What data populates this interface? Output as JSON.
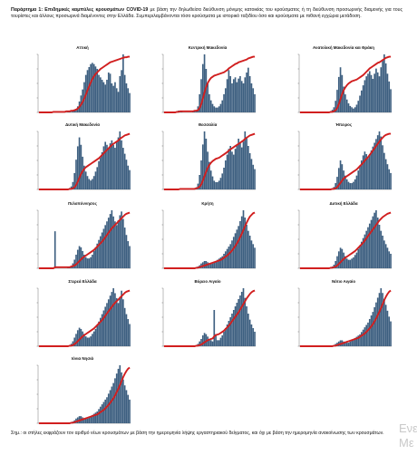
{
  "header": {
    "label": "Παράρτημα 1:",
    "title": "Επιδημικές καμπύλες κρουσμάτων COVID-19",
    "text": "με βάση την δηλωθείσα διεύθυνση μόνιμης κατοικίας του κρούσματος ή τη διεύθυνση προσωρινής διαμονής για τους τουρίστες και άλλους προσωρινά διαμένοντες στην Ελλάδα. Συμπεριλαμβάνονται τόσο κρούσματα με ιστορικό ταξιδίου όσο και κρούσματα με πιθανή εγχώρια μετάδοση."
  },
  "colors": {
    "bars": "#3d5f80",
    "line": "#d11f1f",
    "axis": "#555555"
  },
  "chart_data": [
    {
      "type": "bar",
      "title": "Αττική",
      "values": [
        0,
        0,
        0,
        0,
        0,
        0,
        0,
        0,
        1,
        1,
        1,
        0,
        0,
        0,
        0,
        0,
        0,
        0,
        1,
        1,
        1,
        2,
        3,
        6,
        10,
        18,
        28,
        38,
        50,
        62,
        70,
        75,
        80,
        82,
        80,
        76,
        72,
        62,
        58,
        54,
        50,
        46,
        54,
        66,
        64,
        48,
        44,
        50,
        40,
        34,
        60,
        70,
        96,
        62,
        48,
        40,
        32
      ],
      "line": [
        0,
        0,
        0,
        0,
        0,
        0,
        0,
        0,
        0,
        1,
        1,
        1,
        1,
        1,
        1,
        1,
        1,
        2,
        2,
        2,
        3,
        3,
        4,
        5,
        7,
        10,
        14,
        19,
        25,
        32,
        40,
        47,
        54,
        60,
        65,
        69,
        72,
        75,
        78,
        80,
        82,
        84,
        86,
        88,
        90,
        91,
        92,
        93,
        94,
        95,
        96,
        97,
        98,
        99,
        99,
        100,
        100
      ]
    },
    {
      "type": "bar",
      "title": "Κεντρική Μακεδονία",
      "values": [
        0,
        0,
        0,
        0,
        0,
        0,
        0,
        0,
        2,
        3,
        2,
        1,
        0,
        0,
        0,
        0,
        0,
        0,
        1,
        2,
        4,
        10,
        30,
        55,
        80,
        96,
        72,
        48,
        30,
        20,
        14,
        10,
        8,
        8,
        10,
        14,
        20,
        30,
        40,
        55,
        70,
        60,
        48,
        55,
        58,
        50,
        56,
        60,
        52,
        48,
        58,
        66,
        74,
        60,
        48,
        40,
        30
      ],
      "line": [
        0,
        0,
        0,
        0,
        0,
        0,
        0,
        0,
        1,
        1,
        2,
        2,
        2,
        2,
        2,
        2,
        2,
        2,
        2,
        3,
        3,
        4,
        8,
        15,
        25,
        36,
        46,
        53,
        58,
        62,
        64,
        66,
        67,
        68,
        69,
        70,
        71,
        72,
        74,
        76,
        79,
        81,
        83,
        85,
        87,
        88,
        90,
        91,
        92,
        93,
        94,
        95,
        97,
        98,
        99,
        100,
        100
      ]
    },
    {
      "type": "bar",
      "title": "Ανατολική Μακεδονία και Θράκη",
      "values": [
        0,
        0,
        0,
        0,
        0,
        0,
        0,
        0,
        0,
        1,
        0,
        0,
        0,
        0,
        0,
        0,
        0,
        0,
        1,
        2,
        4,
        8,
        18,
        35,
        55,
        70,
        58,
        40,
        28,
        20,
        14,
        10,
        8,
        6,
        8,
        12,
        18,
        26,
        34,
        42,
        50,
        56,
        60,
        64,
        58,
        52,
        60,
        68,
        62,
        56,
        70,
        80,
        90,
        76,
        60,
        48,
        36
      ],
      "line": [
        0,
        0,
        0,
        0,
        0,
        0,
        0,
        0,
        0,
        0,
        0,
        0,
        0,
        0,
        0,
        0,
        0,
        0,
        0,
        1,
        1,
        2,
        4,
        8,
        15,
        24,
        33,
        40,
        45,
        49,
        52,
        54,
        56,
        57,
        58,
        59,
        61,
        63,
        65,
        67,
        70,
        73,
        76,
        79,
        81,
        83,
        85,
        87,
        89,
        90,
        92,
        94,
        96,
        98,
        99,
        100,
        100
      ]
    },
    {
      "type": "bar",
      "title": "Δυτική Μακεδονία",
      "values": [
        0,
        0,
        0,
        0,
        0,
        0,
        0,
        0,
        0,
        0,
        1,
        1,
        0,
        0,
        0,
        0,
        0,
        0,
        1,
        2,
        4,
        10,
        22,
        40,
        58,
        70,
        60,
        44,
        32,
        24,
        18,
        14,
        12,
        14,
        18,
        24,
        30,
        38,
        44,
        50,
        58,
        64,
        60,
        56,
        62,
        66,
        60,
        56,
        64,
        70,
        78,
        66,
        56,
        48,
        40,
        32,
        26
      ],
      "line": [
        0,
        0,
        0,
        0,
        0,
        0,
        0,
        0,
        0,
        0,
        0,
        0,
        0,
        0,
        0,
        0,
        0,
        0,
        0,
        1,
        1,
        2,
        4,
        8,
        14,
        21,
        28,
        33,
        37,
        40,
        42,
        44,
        46,
        48,
        50,
        52,
        54,
        56,
        59,
        62,
        65,
        68,
        71,
        74,
        77,
        80,
        82,
        84,
        86,
        88,
        91,
        93,
        95,
        97,
        98,
        99,
        100
      ]
    },
    {
      "type": "bar",
      "title": "Θεσσαλία",
      "values": [
        0,
        0,
        0,
        0,
        0,
        0,
        0,
        0,
        1,
        1,
        1,
        0,
        0,
        0,
        0,
        0,
        0,
        0,
        1,
        2,
        3,
        8,
        20,
        40,
        62,
        80,
        70,
        52,
        38,
        26,
        18,
        12,
        10,
        10,
        12,
        16,
        22,
        30,
        40,
        48,
        56,
        60,
        52,
        48,
        56,
        62,
        70,
        64,
        58,
        66,
        80,
        72,
        60,
        50,
        42,
        34,
        28
      ],
      "line": [
        0,
        0,
        0,
        0,
        0,
        0,
        0,
        0,
        0,
        0,
        1,
        1,
        1,
        1,
        1,
        1,
        1,
        1,
        1,
        1,
        2,
        3,
        5,
        9,
        16,
        24,
        32,
        39,
        44,
        48,
        51,
        53,
        55,
        56,
        57,
        59,
        61,
        63,
        65,
        67,
        70,
        72,
        74,
        76,
        78,
        80,
        82,
        84,
        86,
        88,
        91,
        93,
        95,
        97,
        98,
        99,
        100
      ]
    },
    {
      "type": "bar",
      "title": "Ήπειρος",
      "values": [
        0,
        0,
        0,
        0,
        0,
        0,
        0,
        0,
        1,
        0,
        0,
        0,
        0,
        0,
        0,
        0,
        0,
        0,
        1,
        1,
        2,
        4,
        10,
        20,
        34,
        46,
        40,
        30,
        22,
        16,
        12,
        10,
        10,
        12,
        16,
        22,
        30,
        38,
        46,
        54,
        60,
        56,
        50,
        56,
        62,
        68,
        74,
        80,
        86,
        92,
        84,
        70,
        58,
        48,
        40,
        32,
        26
      ],
      "line": [
        0,
        0,
        0,
        0,
        0,
        0,
        0,
        0,
        0,
        0,
        0,
        0,
        0,
        0,
        0,
        0,
        0,
        0,
        0,
        0,
        1,
        1,
        2,
        4,
        8,
        12,
        16,
        20,
        22,
        24,
        26,
        28,
        30,
        32,
        34,
        36,
        39,
        42,
        45,
        48,
        52,
        55,
        58,
        62,
        66,
        70,
        74,
        78,
        82,
        86,
        90,
        93,
        96,
        98,
        99,
        100,
        100
      ]
    },
    {
      "type": "bar",
      "title": "Πελοπόννησος",
      "values": [
        0,
        0,
        0,
        0,
        0,
        0,
        0,
        0,
        0,
        0,
        60,
        0,
        0,
        0,
        0,
        0,
        0,
        0,
        1,
        2,
        4,
        8,
        14,
        22,
        30,
        36,
        34,
        28,
        22,
        18,
        16,
        16,
        18,
        22,
        28,
        34,
        40,
        46,
        52,
        58,
        64,
        70,
        76,
        82,
        88,
        94,
        84,
        76,
        70,
        78,
        86,
        92,
        80,
        66,
        54,
        44,
        36
      ],
      "line": [
        0,
        0,
        0,
        0,
        0,
        0,
        0,
        0,
        0,
        0,
        2,
        2,
        2,
        2,
        2,
        2,
        2,
        2,
        2,
        2,
        3,
        4,
        5,
        7,
        10,
        13,
        16,
        19,
        21,
        23,
        25,
        27,
        29,
        31,
        33,
        36,
        39,
        42,
        45,
        48,
        52,
        56,
        60,
        64,
        68,
        72,
        75,
        78,
        81,
        84,
        87,
        90,
        93,
        96,
        98,
        99,
        100
      ]
    },
    {
      "type": "bar",
      "title": "Κρήτη",
      "values": [
        0,
        0,
        0,
        0,
        0,
        0,
        0,
        0,
        0,
        0,
        0,
        0,
        0,
        0,
        0,
        0,
        0,
        0,
        1,
        1,
        2,
        3,
        5,
        8,
        10,
        12,
        12,
        10,
        8,
        8,
        8,
        10,
        12,
        14,
        16,
        18,
        20,
        24,
        28,
        32,
        36,
        40,
        46,
        52,
        58,
        64,
        70,
        78,
        86,
        96,
        84,
        72,
        62,
        54,
        46,
        40,
        34
      ],
      "line": [
        0,
        0,
        0,
        0,
        0,
        0,
        0,
        0,
        0,
        0,
        0,
        0,
        0,
        0,
        0,
        0,
        0,
        0,
        0,
        0,
        1,
        1,
        2,
        3,
        4,
        5,
        6,
        7,
        8,
        9,
        10,
        11,
        12,
        13,
        14,
        15,
        17,
        19,
        21,
        23,
        26,
        29,
        32,
        36,
        40,
        45,
        50,
        56,
        62,
        69,
        76,
        82,
        88,
        93,
        96,
        99,
        100
      ]
    },
    {
      "type": "bar",
      "title": "Δυτική Ελλάδα",
      "values": [
        0,
        0,
        0,
        0,
        0,
        0,
        0,
        0,
        0,
        1,
        0,
        0,
        0,
        0,
        0,
        0,
        0,
        0,
        1,
        2,
        3,
        6,
        12,
        20,
        28,
        34,
        32,
        26,
        20,
        16,
        14,
        14,
        16,
        18,
        22,
        26,
        32,
        38,
        44,
        50,
        56,
        62,
        68,
        74,
        80,
        86,
        92,
        96,
        84,
        72,
        62,
        54,
        46,
        40,
        34,
        28,
        24
      ],
      "line": [
        0,
        0,
        0,
        0,
        0,
        0,
        0,
        0,
        0,
        0,
        0,
        0,
        0,
        0,
        0,
        0,
        0,
        0,
        0,
        1,
        1,
        2,
        3,
        5,
        8,
        11,
        14,
        17,
        19,
        21,
        23,
        25,
        27,
        29,
        31,
        34,
        37,
        40,
        43,
        46,
        50,
        54,
        58,
        62,
        66,
        70,
        74,
        78,
        82,
        86,
        89,
        92,
        94,
        96,
        98,
        99,
        100
      ]
    },
    {
      "type": "bar",
      "title": "Στερεά Ελλάδα",
      "values": [
        0,
        0,
        0,
        0,
        0,
        0,
        0,
        0,
        0,
        0,
        1,
        0,
        0,
        0,
        0,
        0,
        0,
        0,
        1,
        2,
        4,
        8,
        14,
        20,
        26,
        30,
        28,
        24,
        20,
        16,
        14,
        14,
        16,
        20,
        24,
        28,
        34,
        40,
        46,
        52,
        58,
        64,
        70,
        76,
        82,
        88,
        94,
        86,
        78,
        70,
        80,
        90,
        76,
        62,
        52,
        44,
        36
      ],
      "line": [
        0,
        0,
        0,
        0,
        0,
        0,
        0,
        0,
        0,
        0,
        0,
        0,
        0,
        0,
        0,
        0,
        0,
        0,
        0,
        1,
        1,
        2,
        4,
        6,
        9,
        12,
        15,
        18,
        20,
        22,
        24,
        26,
        28,
        30,
        32,
        35,
        38,
        41,
        44,
        47,
        51,
        55,
        59,
        63,
        67,
        71,
        75,
        78,
        81,
        84,
        87,
        90,
        93,
        96,
        98,
        99,
        100
      ]
    },
    {
      "type": "bar",
      "title": "Βόρειο Αιγαίο",
      "values": [
        0,
        0,
        0,
        0,
        0,
        0,
        0,
        0,
        0,
        0,
        0,
        0,
        0,
        0,
        0,
        0,
        0,
        0,
        0,
        1,
        2,
        4,
        8,
        12,
        18,
        22,
        20,
        16,
        12,
        10,
        8,
        60,
        20,
        10,
        10,
        14,
        18,
        24,
        30,
        36,
        42,
        48,
        54,
        60,
        66,
        72,
        78,
        84,
        90,
        96,
        80,
        66,
        54,
        44,
        36,
        30,
        24
      ],
      "line": [
        0,
        0,
        0,
        0,
        0,
        0,
        0,
        0,
        0,
        0,
        0,
        0,
        0,
        0,
        0,
        0,
        0,
        0,
        0,
        0,
        1,
        1,
        2,
        3,
        5,
        7,
        9,
        11,
        12,
        13,
        14,
        18,
        20,
        21,
        22,
        24,
        26,
        28,
        31,
        34,
        37,
        41,
        45,
        49,
        53,
        57,
        61,
        66,
        71,
        76,
        81,
        86,
        90,
        94,
        97,
        99,
        100
      ]
    },
    {
      "type": "bar",
      "title": "Νότιο Αιγαίο",
      "values": [
        0,
        0,
        0,
        0,
        0,
        0,
        0,
        0,
        0,
        0,
        0,
        0,
        0,
        0,
        0,
        0,
        0,
        0,
        0,
        1,
        1,
        2,
        4,
        6,
        8,
        10,
        10,
        8,
        6,
        6,
        6,
        8,
        10,
        12,
        14,
        16,
        18,
        20,
        24,
        28,
        32,
        36,
        40,
        46,
        52,
        58,
        66,
        74,
        82,
        90,
        98,
        90,
        80,
        70,
        60,
        50,
        42
      ],
      "line": [
        0,
        0,
        0,
        0,
        0,
        0,
        0,
        0,
        0,
        0,
        0,
        0,
        0,
        0,
        0,
        0,
        0,
        0,
        0,
        0,
        0,
        1,
        1,
        2,
        3,
        4,
        5,
        6,
        7,
        8,
        9,
        10,
        11,
        12,
        13,
        14,
        15,
        17,
        19,
        21,
        23,
        26,
        29,
        32,
        36,
        40,
        45,
        50,
        56,
        62,
        69,
        76,
        83,
        89,
        94,
        98,
        100
      ]
    },
    {
      "type": "bar",
      "title": "Ιόνια Νησιά",
      "values": [
        0,
        0,
        0,
        0,
        0,
        0,
        0,
        0,
        0,
        0,
        0,
        0,
        0,
        0,
        0,
        0,
        0,
        0,
        0,
        1,
        2,
        3,
        5,
        8,
        10,
        12,
        12,
        10,
        8,
        8,
        8,
        10,
        12,
        14,
        16,
        18,
        20,
        24,
        28,
        32,
        36,
        40,
        44,
        50,
        56,
        62,
        68,
        76,
        84,
        92,
        98,
        86,
        74,
        64,
        56,
        48,
        40
      ],
      "line": [
        0,
        0,
        0,
        0,
        0,
        0,
        0,
        0,
        0,
        0,
        0,
        0,
        0,
        0,
        0,
        0,
        0,
        0,
        0,
        0,
        1,
        1,
        2,
        3,
        4,
        5,
        6,
        7,
        8,
        9,
        10,
        11,
        12,
        13,
        14,
        15,
        16,
        18,
        20,
        22,
        24,
        27,
        30,
        33,
        37,
        41,
        45,
        50,
        56,
        62,
        69,
        76,
        83,
        89,
        94,
        98,
        100
      ]
    }
  ],
  "footer": {
    "label": "Σημ.:",
    "text": "οι στήλες εκφράζουν τον αριθμό νέων κρουσμάτων με βάση την ημερομηνία λήψης εργαστηριακού δείγματος, και όχι με βάση την ημερομηνία ανακοίνωσης των κρουσμάτων."
  },
  "watermark": {
    "line1": "Ενε",
    "line2": "Με"
  }
}
